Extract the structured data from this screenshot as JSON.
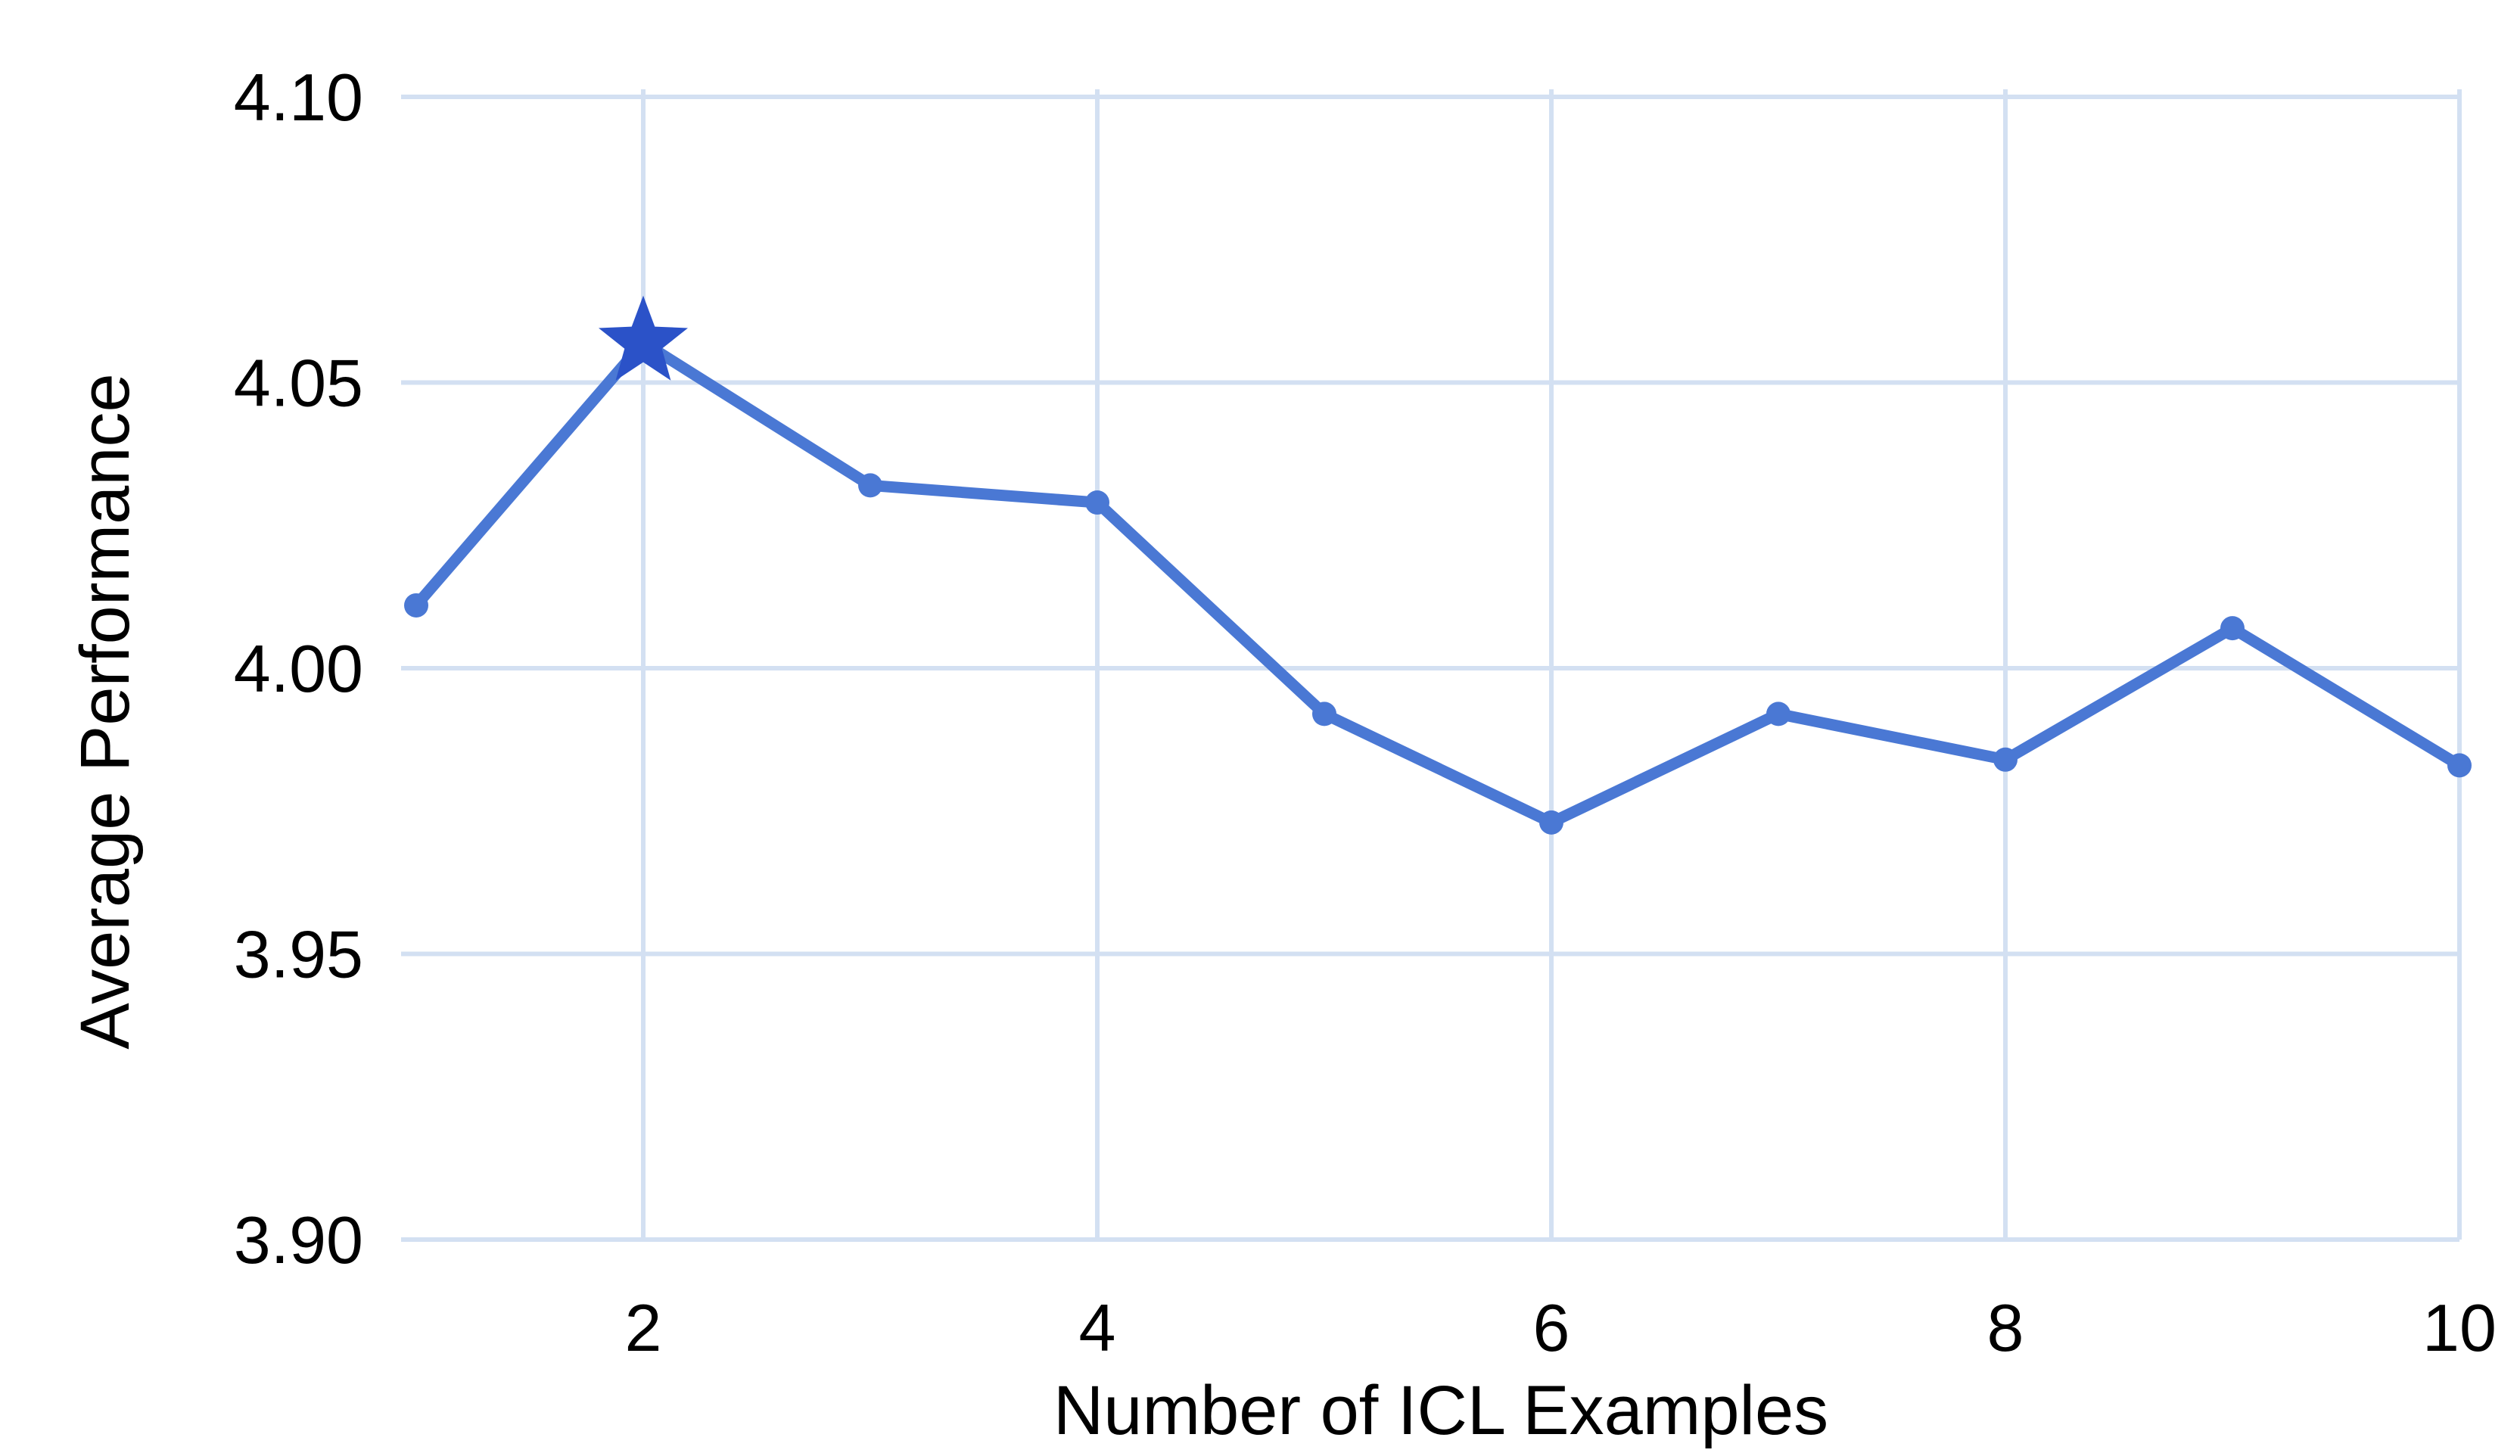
{
  "chart_data": {
    "type": "line",
    "title": "",
    "xlabel": "Number of ICL Examples",
    "ylabel": "Average Performance",
    "xlim": [
      1,
      10
    ],
    "ylim": [
      3.9,
      4.1
    ],
    "xticks": [
      2,
      4,
      6,
      8,
      10
    ],
    "xtick_labels": [
      "2",
      "4",
      "6",
      "8",
      "10"
    ],
    "yticks": [
      3.9,
      3.95,
      4.0,
      4.05,
      4.1
    ],
    "ytick_labels": [
      "3.90",
      "3.95",
      "4.00",
      "4.05",
      "4.10"
    ],
    "grid": true,
    "legend": "none",
    "series": [
      {
        "x": [
          1,
          2,
          3,
          4,
          5,
          6,
          7,
          8,
          9,
          10
        ],
        "values": [
          4.011,
          4.057,
          4.032,
          4.029,
          3.992,
          3.973,
          3.992,
          3.984,
          4.007,
          3.983
        ],
        "color": "#4A78D4",
        "highlight": {
          "x": 2,
          "y": 4.057,
          "marker": "star",
          "color": "#2B52C8"
        }
      }
    ],
    "grid_color": "#D3E0F2"
  }
}
